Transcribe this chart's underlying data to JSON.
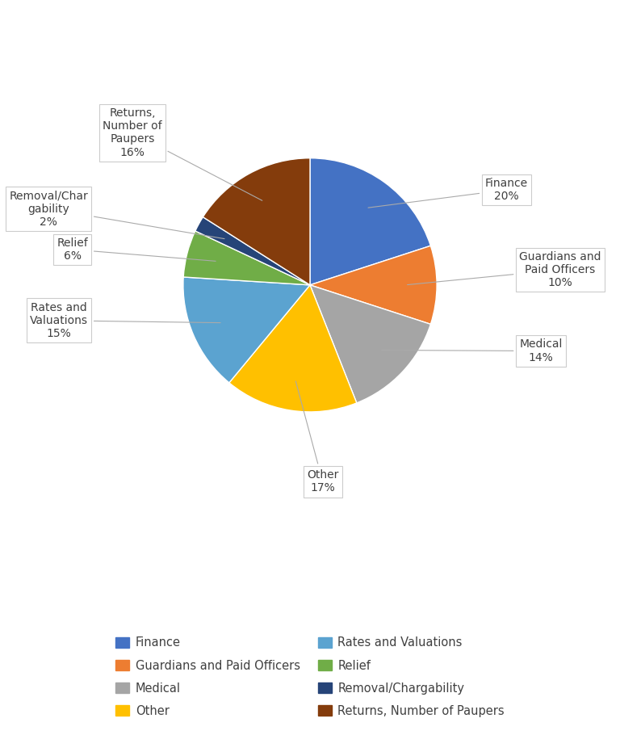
{
  "labels": [
    "Finance",
    "Guardians and Paid Officers",
    "Medical",
    "Other",
    "Rates and Valuations",
    "Relief",
    "Removal/Chargability",
    "Returns, Number of Paupers"
  ],
  "values": [
    20,
    10,
    14,
    17,
    15,
    6,
    2,
    16
  ],
  "colors": [
    "#4472C4",
    "#ED7D31",
    "#A5A5A5",
    "#FFC000",
    "#5BA3D0",
    "#70AD47",
    "#264478",
    "#843C0C"
  ],
  "legend_labels_col1": [
    "Finance",
    "Medical",
    "Rates and Valuations",
    "Removal/Chargability"
  ],
  "legend_labels_col2": [
    "Guardians and Paid Officers",
    "Other",
    "Relief",
    "Returns, Number of Paupers"
  ],
  "legend_colors_col1": [
    "#4472C4",
    "#A5A5A5",
    "#5BA3D0",
    "#264478"
  ],
  "legend_colors_col2": [
    "#ED7D31",
    "#FFC000",
    "#70AD47",
    "#843C0C"
  ],
  "background_color": "#FFFFFF",
  "startangle": 90,
  "figsize": [
    7.68,
    9.1
  ],
  "dpi": 100,
  "annotation_fontsize": 10,
  "label_color": "#404040"
}
